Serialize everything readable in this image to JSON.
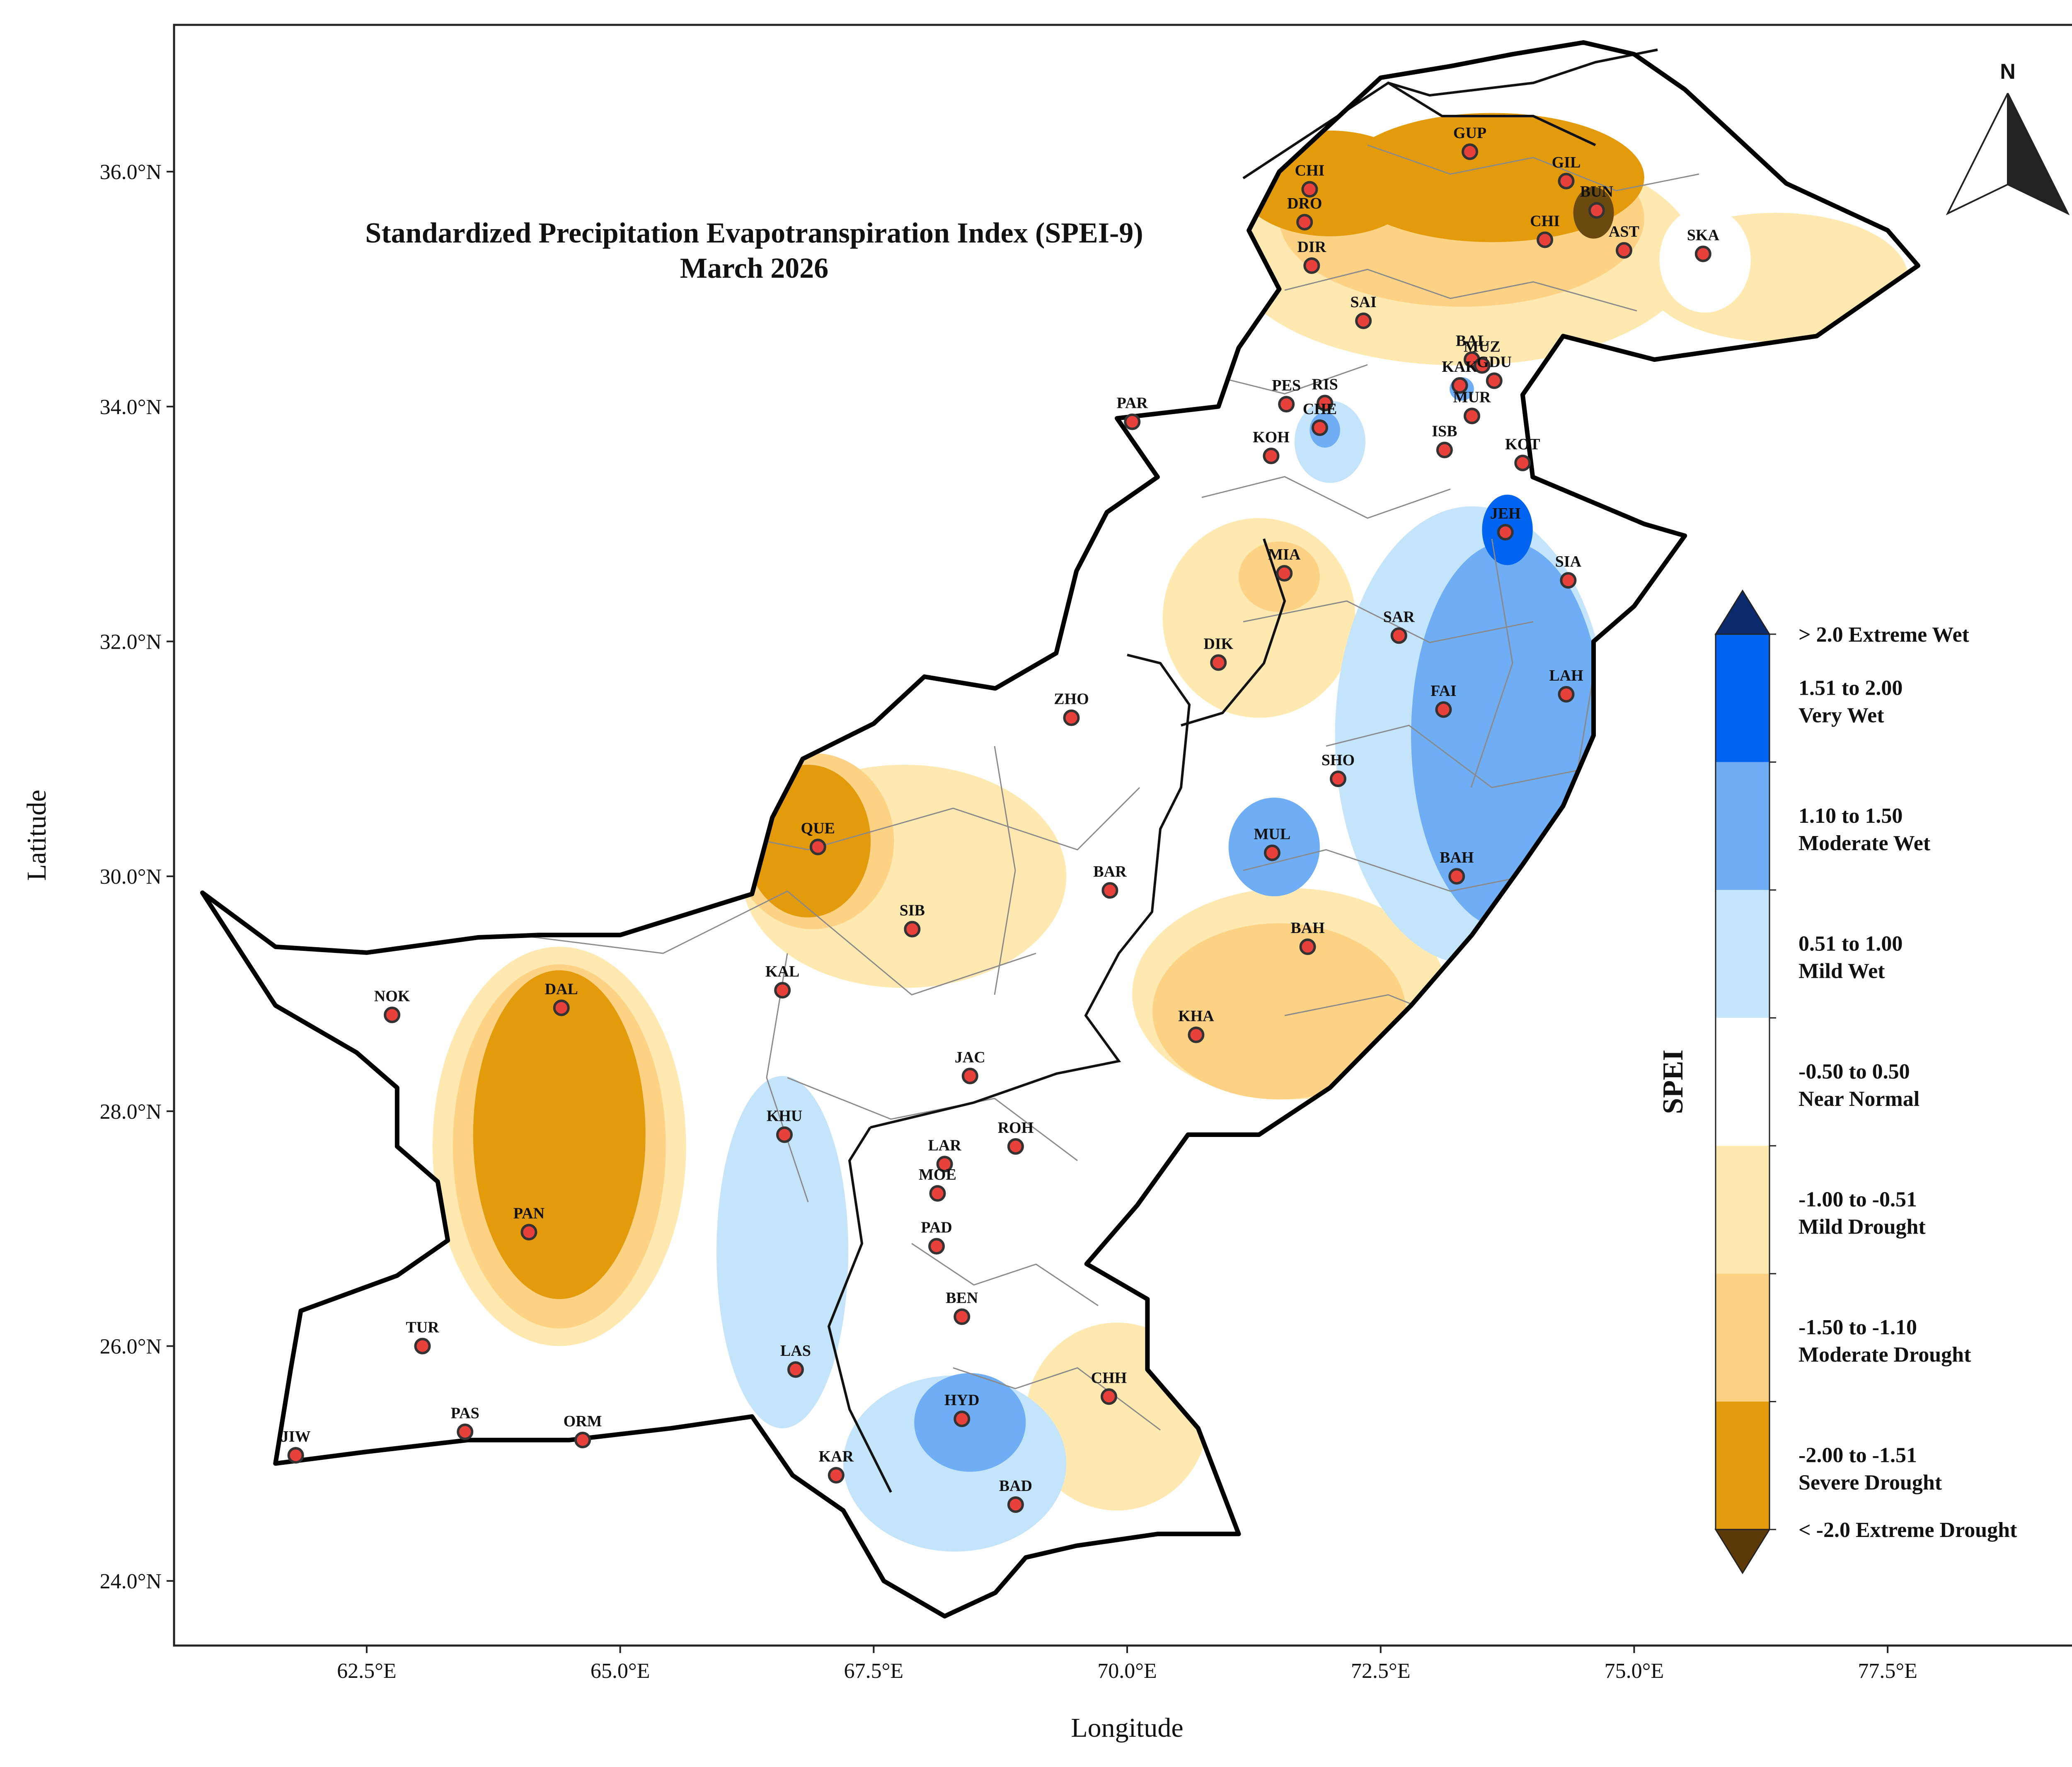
{
  "title": {
    "line1": "Standardized Precipitation Evapotranspiration Index (SPEI-9)",
    "line2": "March 2026"
  },
  "axes": {
    "xlabel": "Longitude",
    "ylabel": "Latitude",
    "xticks": [
      {
        "value": 62.5,
        "label": "62.5°E"
      },
      {
        "value": 65.0,
        "label": "65.0°E"
      },
      {
        "value": 67.5,
        "label": "67.5°E"
      },
      {
        "value": 70.0,
        "label": "70.0°E"
      },
      {
        "value": 72.5,
        "label": "72.5°E"
      },
      {
        "value": 75.0,
        "label": "75.0°E"
      },
      {
        "value": 77.5,
        "label": "77.5°E"
      }
    ],
    "yticks": [
      {
        "value": 24.0,
        "label": "24.0°N"
      },
      {
        "value": 26.0,
        "label": "26.0°N"
      },
      {
        "value": 28.0,
        "label": "28.0°N"
      },
      {
        "value": 30.0,
        "label": "30.0°N"
      },
      {
        "value": 32.0,
        "label": "32.0°N"
      },
      {
        "value": 34.0,
        "label": "34.0°N"
      },
      {
        "value": 36.0,
        "label": "36.0°N"
      }
    ],
    "xlim": [
      60.6,
      79.4
    ],
    "ylim": [
      23.45,
      37.25
    ]
  },
  "north_arrow": {
    "label": "N"
  },
  "legend": {
    "title": "SPEI",
    "top_label": "> 2.0 Extreme Wet",
    "bottom_label": "< -2.0 Extreme Drought",
    "top_color": "#0b2a6e",
    "bottom_color": "#5c3a08",
    "classes": [
      {
        "line1": "1.51 to 2.00",
        "line2": "Very Wet",
        "color": "#0064f0"
      },
      {
        "line1": "1.10 to 1.50",
        "line2": "Moderate Wet",
        "color": "#6faef5"
      },
      {
        "line1": "0.51 to 1.00",
        "line2": "Mild Wet",
        "color": "#c4e4fb"
      },
      {
        "line1": "-0.50 to 0.50",
        "line2": "Near Normal",
        "color": "#ffffff"
      },
      {
        "line1": "-1.00 to -0.51",
        "line2": "Mild Drought",
        "color": "#ffe9b0"
      },
      {
        "line1": "-1.50 to -1.10",
        "line2": "Moderate Drought",
        "color": "#fdd285"
      },
      {
        "line1": "-2.00 to -1.51",
        "line2": "Severe Drought",
        "color": "#e39b0b"
      }
    ]
  },
  "stations": [
    {
      "label": "CHI",
      "lon": 71.8,
      "lat": 35.85
    },
    {
      "label": "DRO",
      "lon": 71.75,
      "lat": 35.57
    },
    {
      "label": "DIR",
      "lon": 71.82,
      "lat": 35.2
    },
    {
      "label": "GUP",
      "lon": 73.38,
      "lat": 36.17
    },
    {
      "label": "GIL",
      "lon": 74.33,
      "lat": 35.92
    },
    {
      "label": "BUN",
      "lon": 74.63,
      "lat": 35.67
    },
    {
      "label": "CHI",
      "lon": 74.12,
      "lat": 35.42
    },
    {
      "label": "AST",
      "lon": 74.9,
      "lat": 35.33
    },
    {
      "label": "SKA",
      "lon": 75.68,
      "lat": 35.3
    },
    {
      "label": "SAI",
      "lon": 72.33,
      "lat": 34.73
    },
    {
      "label": "BAL",
      "lon": 73.4,
      "lat": 34.4
    },
    {
      "label": "MUZ",
      "lon": 73.5,
      "lat": 34.35
    },
    {
      "label": "KAK",
      "lon": 73.28,
      "lat": 34.18
    },
    {
      "label": "GDU",
      "lon": 73.62,
      "lat": 34.22
    },
    {
      "label": "MUR",
      "lon": 73.4,
      "lat": 33.92
    },
    {
      "label": "PES",
      "lon": 71.57,
      "lat": 34.02
    },
    {
      "label": "RIS",
      "lon": 71.95,
      "lat": 34.03
    },
    {
      "label": "CHE",
      "lon": 71.9,
      "lat": 33.82
    },
    {
      "label": "KOH",
      "lon": 71.42,
      "lat": 33.58
    },
    {
      "label": "ISB",
      "lon": 73.13,
      "lat": 33.63
    },
    {
      "label": "KOT",
      "lon": 73.9,
      "lat": 33.52
    },
    {
      "label": "PAR",
      "lon": 70.05,
      "lat": 33.87
    },
    {
      "label": "JEH",
      "lon": 73.73,
      "lat": 32.93
    },
    {
      "label": "SIA",
      "lon": 74.35,
      "lat": 32.52
    },
    {
      "label": "MIA",
      "lon": 71.55,
      "lat": 32.58
    },
    {
      "label": "SAR",
      "lon": 72.68,
      "lat": 32.05
    },
    {
      "label": "DIK",
      "lon": 70.9,
      "lat": 31.82
    },
    {
      "label": "FAI",
      "lon": 73.12,
      "lat": 31.42
    },
    {
      "label": "LAH",
      "lon": 74.33,
      "lat": 31.55
    },
    {
      "label": "ZHO",
      "lon": 69.45,
      "lat": 31.35
    },
    {
      "label": "SHO",
      "lon": 72.08,
      "lat": 30.83
    },
    {
      "label": "QUE",
      "lon": 66.95,
      "lat": 30.25
    },
    {
      "label": "MUL",
      "lon": 71.43,
      "lat": 30.2
    },
    {
      "label": "BAH",
      "lon": 73.25,
      "lat": 30.0
    },
    {
      "label": "BAR",
      "lon": 69.83,
      "lat": 29.88
    },
    {
      "label": "SIB",
      "lon": 67.88,
      "lat": 29.55
    },
    {
      "label": "BAH",
      "lon": 71.78,
      "lat": 29.4
    },
    {
      "label": "KAL",
      "lon": 66.6,
      "lat": 29.03
    },
    {
      "label": "NOK",
      "lon": 62.75,
      "lat": 28.82
    },
    {
      "label": "DAL",
      "lon": 64.42,
      "lat": 28.88
    },
    {
      "label": "KHA",
      "lon": 70.68,
      "lat": 28.65
    },
    {
      "label": "JAC",
      "lon": 68.45,
      "lat": 28.3
    },
    {
      "label": "KHU",
      "lon": 66.62,
      "lat": 27.8
    },
    {
      "label": "LAR",
      "lon": 68.2,
      "lat": 27.55
    },
    {
      "label": "ROH",
      "lon": 68.9,
      "lat": 27.7
    },
    {
      "label": "MOE",
      "lon": 68.13,
      "lat": 27.3
    },
    {
      "label": "PAD",
      "lon": 68.12,
      "lat": 26.85
    },
    {
      "label": "PAN",
      "lon": 64.1,
      "lat": 26.97
    },
    {
      "label": "BEN",
      "lon": 68.37,
      "lat": 26.25
    },
    {
      "label": "TUR",
      "lon": 63.05,
      "lat": 26.0
    },
    {
      "label": "LAS",
      "lon": 66.73,
      "lat": 25.8
    },
    {
      "label": "CHH",
      "lon": 69.82,
      "lat": 25.57
    },
    {
      "label": "HYD",
      "lon": 68.37,
      "lat": 25.38
    },
    {
      "label": "PAS",
      "lon": 63.47,
      "lat": 25.27
    },
    {
      "label": "ORM",
      "lon": 64.63,
      "lat": 25.2
    },
    {
      "label": "JIW",
      "lon": 61.8,
      "lat": 25.07
    },
    {
      "label": "KAR",
      "lon": 67.13,
      "lat": 24.9
    },
    {
      "label": "BAD",
      "lon": 68.9,
      "lat": 24.65
    }
  ],
  "zones": [
    {
      "cls": "mild_dry",
      "lon": 64.4,
      "lat": 27.7,
      "rx": 1.25,
      "ry": 1.7
    },
    {
      "cls": "mod_dry",
      "lon": 64.4,
      "lat": 27.7,
      "rx": 1.05,
      "ry": 1.55
    },
    {
      "cls": "sev_dry",
      "lon": 64.4,
      "lat": 27.8,
      "rx": 0.85,
      "ry": 1.4
    },
    {
      "cls": "mild_dry",
      "lon": 67.8,
      "lat": 30.0,
      "rx": 1.6,
      "ry": 0.95
    },
    {
      "cls": "mod_dry",
      "lon": 66.9,
      "lat": 30.3,
      "rx": 0.8,
      "ry": 0.75
    },
    {
      "cls": "sev_dry",
      "lon": 66.85,
      "lat": 30.3,
      "rx": 0.62,
      "ry": 0.65
    },
    {
      "cls": "mild_dry",
      "lon": 71.3,
      "lat": 32.2,
      "rx": 0.95,
      "ry": 0.85
    },
    {
      "cls": "mod_dry",
      "lon": 71.5,
      "lat": 32.55,
      "rx": 0.4,
      "ry": 0.3
    },
    {
      "cls": "mild_dry",
      "lon": 71.6,
      "lat": 29.0,
      "rx": 1.55,
      "ry": 0.9
    },
    {
      "cls": "mod_dry",
      "lon": 71.5,
      "lat": 28.85,
      "rx": 1.25,
      "ry": 0.75
    },
    {
      "cls": "mild_dry",
      "lon": 69.9,
      "lat": 25.4,
      "rx": 0.9,
      "ry": 0.8
    },
    {
      "cls": "mild_dry",
      "lon": 73.3,
      "lat": 35.3,
      "rx": 2.3,
      "ry": 0.95
    },
    {
      "cls": "mod_dry",
      "lon": 73.3,
      "lat": 35.6,
      "rx": 1.8,
      "ry": 0.75
    },
    {
      "cls": "sev_dry",
      "lon": 73.6,
      "lat": 35.95,
      "rx": 1.5,
      "ry": 0.55
    },
    {
      "cls": "sev_dry",
      "lon": 72.0,
      "lat": 35.9,
      "rx": 0.9,
      "ry": 0.45
    },
    {
      "cls": "ext_dry",
      "lon": 74.6,
      "lat": 35.65,
      "rx": 0.2,
      "ry": 0.22
    },
    {
      "cls": "mild_dry",
      "lon": 76.4,
      "lat": 35.1,
      "rx": 1.3,
      "ry": 0.55
    },
    {
      "cls": "normal",
      "lon": 75.7,
      "lat": 35.25,
      "rx": 0.45,
      "ry": 0.45
    },
    {
      "cls": "mild_wet",
      "lon": 66.6,
      "lat": 26.8,
      "rx": 0.65,
      "ry": 1.5
    },
    {
      "cls": "mild_wet",
      "lon": 68.3,
      "lat": 25.0,
      "rx": 1.1,
      "ry": 0.75
    },
    {
      "cls": "mod_wet",
      "lon": 68.45,
      "lat": 25.35,
      "rx": 0.55,
      "ry": 0.42
    },
    {
      "cls": "mild_wet",
      "lon": 73.4,
      "lat": 31.2,
      "rx": 1.35,
      "ry": 1.95
    },
    {
      "cls": "mod_wet",
      "lon": 73.75,
      "lat": 31.2,
      "rx": 0.95,
      "ry": 1.65
    },
    {
      "cls": "vwet",
      "lon": 73.75,
      "lat": 32.95,
      "rx": 0.25,
      "ry": 0.3
    },
    {
      "cls": "mod_wet",
      "lon": 71.45,
      "lat": 30.25,
      "rx": 0.45,
      "ry": 0.42
    },
    {
      "cls": "mild_wet",
      "lon": 72.0,
      "lat": 33.7,
      "rx": 0.35,
      "ry": 0.35
    },
    {
      "cls": "mod_wet",
      "lon": 71.95,
      "lat": 33.8,
      "rx": 0.15,
      "ry": 0.15
    },
    {
      "cls": "mod_wet",
      "lon": 73.3,
      "lat": 34.15,
      "rx": 0.12,
      "ry": 0.1
    }
  ]
}
